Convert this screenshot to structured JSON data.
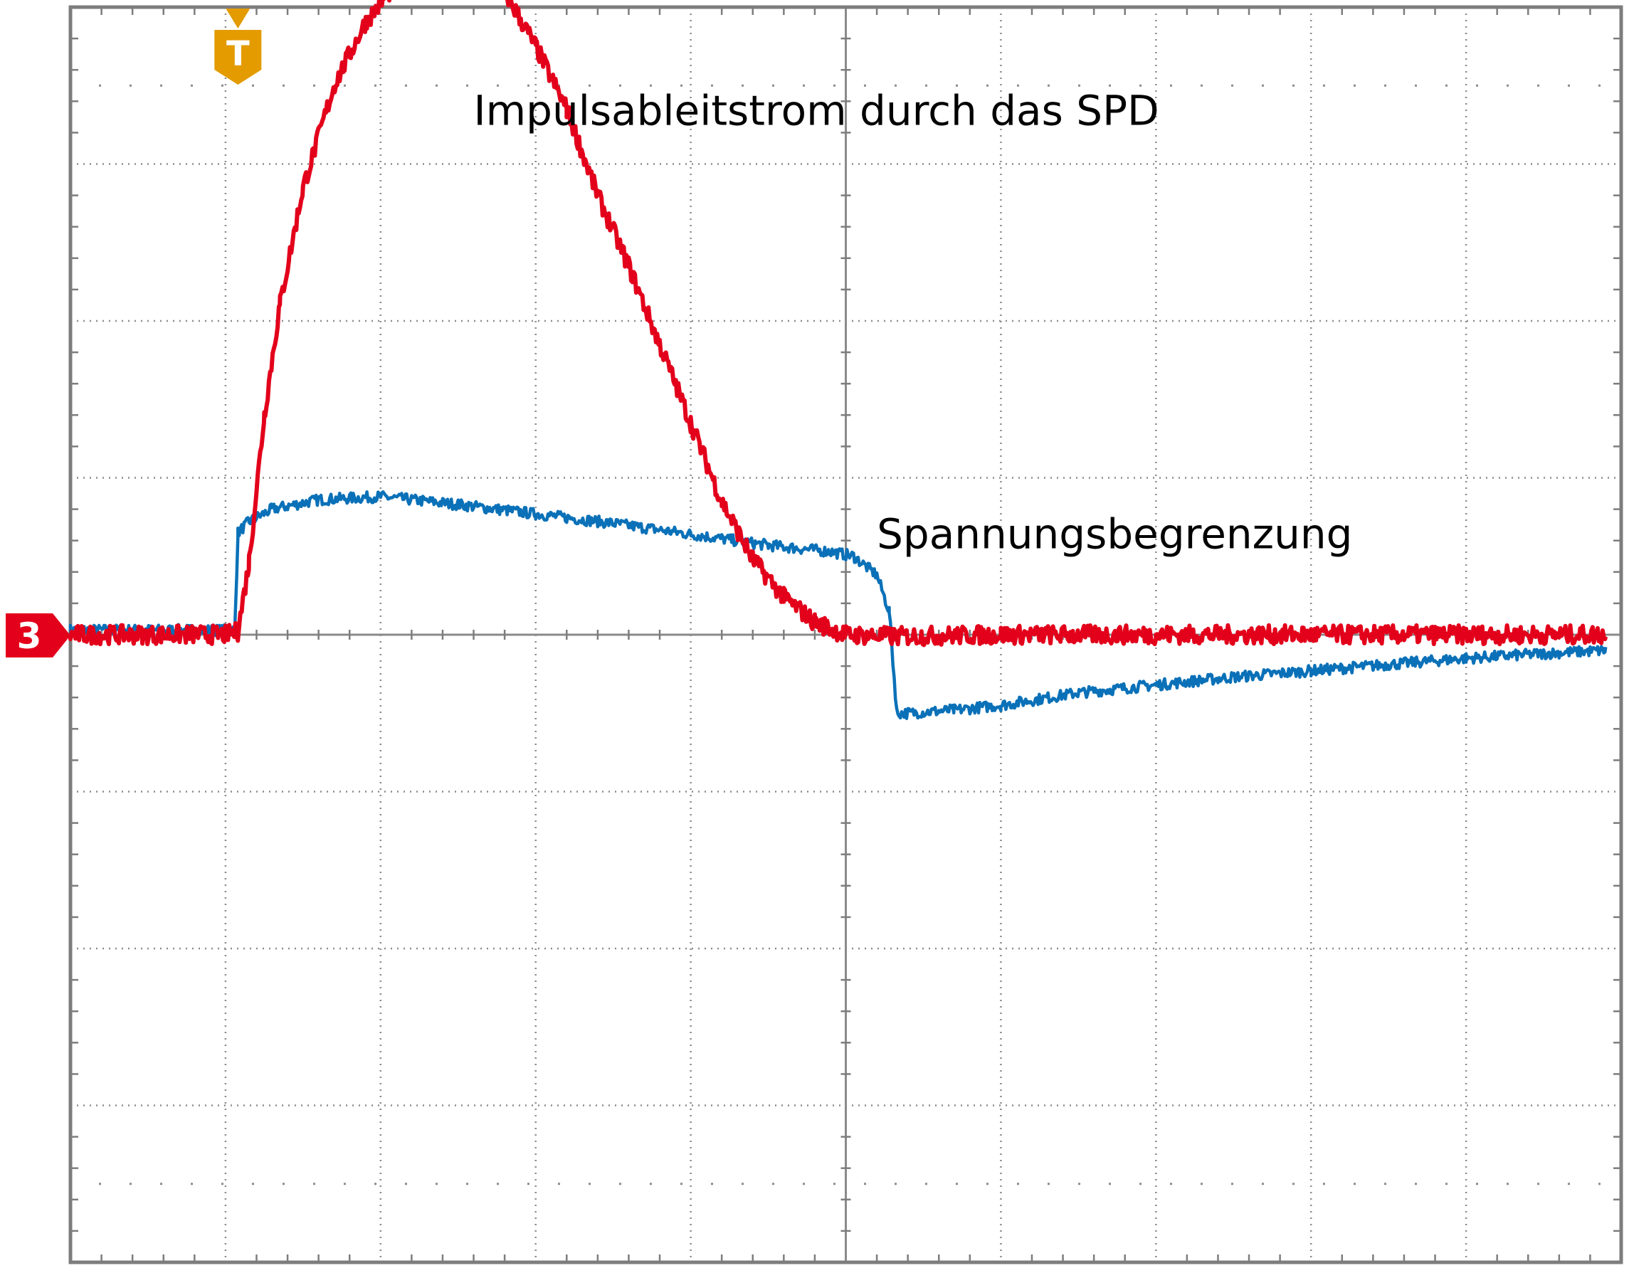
{
  "chart_data": {
    "type": "line",
    "title": "",
    "xlabel": "",
    "ylabel": "",
    "grid": true,
    "x_divisions": 10,
    "y_divisions": 8,
    "xlim": [
      0,
      10
    ],
    "ylim": [
      -4,
      4
    ],
    "annotations": [
      {
        "id": "current",
        "text": "Impulsableitstrom durch das SPD",
        "x": 2.6,
        "y": 3.25
      },
      {
        "id": "voltage",
        "text": "Spannungsbegrenzung",
        "x": 5.2,
        "y": 0.55
      }
    ],
    "markers": {
      "trigger": {
        "label": "T",
        "x": 1.08,
        "color": "#e39b00"
      },
      "channel": {
        "label": "3",
        "y": 0,
        "color": "#e3001b"
      }
    },
    "series": [
      {
        "color": "#e3001b",
        "noise": 0.06,
        "points": [
          [
            0,
            0
          ],
          [
            1.0,
            0.0
          ],
          [
            1.08,
            0.02
          ],
          [
            1.15,
            0.45
          ],
          [
            1.25,
            1.4
          ],
          [
            1.35,
            2.1
          ],
          [
            1.5,
            2.85
          ],
          [
            1.7,
            3.5
          ],
          [
            1.9,
            3.9
          ],
          [
            2.1,
            4.15
          ],
          [
            2.3,
            4.32
          ],
          [
            2.45,
            4.38
          ],
          [
            2.6,
            4.3
          ],
          [
            2.8,
            4.1
          ],
          [
            3.0,
            3.75
          ],
          [
            3.2,
            3.35
          ],
          [
            3.4,
            2.8
          ],
          [
            3.6,
            2.35
          ],
          [
            3.8,
            1.85
          ],
          [
            4.0,
            1.35
          ],
          [
            4.2,
            0.85
          ],
          [
            4.4,
            0.48
          ],
          [
            4.6,
            0.24
          ],
          [
            4.8,
            0.08
          ],
          [
            5.0,
            0.0
          ],
          [
            5.3,
            -0.01
          ],
          [
            6.0,
            0.0
          ],
          [
            7.0,
            0.0
          ],
          [
            8.0,
            0.0
          ],
          [
            9.0,
            0.0
          ],
          [
            9.9,
            0.0
          ]
        ]
      },
      {
        "color": "#0a71b8",
        "noise": 0.035,
        "points": [
          [
            0,
            0.03
          ],
          [
            1.0,
            0.03
          ],
          [
            1.06,
            0.03
          ],
          [
            1.08,
            0.65
          ],
          [
            1.15,
            0.72
          ],
          [
            1.3,
            0.8
          ],
          [
            1.6,
            0.86
          ],
          [
            2.0,
            0.88
          ],
          [
            2.5,
            0.83
          ],
          [
            3.0,
            0.77
          ],
          [
            3.5,
            0.71
          ],
          [
            4.0,
            0.64
          ],
          [
            4.5,
            0.57
          ],
          [
            4.9,
            0.53
          ],
          [
            5.05,
            0.5
          ],
          [
            5.2,
            0.38
          ],
          [
            5.28,
            0.15
          ],
          [
            5.31,
            -0.25
          ],
          [
            5.33,
            -0.5
          ],
          [
            5.4,
            -0.5
          ],
          [
            5.7,
            -0.48
          ],
          [
            6.0,
            -0.45
          ],
          [
            6.5,
            -0.37
          ],
          [
            7.0,
            -0.32
          ],
          [
            7.5,
            -0.27
          ],
          [
            8.0,
            -0.23
          ],
          [
            8.5,
            -0.19
          ],
          [
            9.0,
            -0.15
          ],
          [
            9.5,
            -0.12
          ],
          [
            9.9,
            -0.1
          ]
        ]
      }
    ]
  }
}
